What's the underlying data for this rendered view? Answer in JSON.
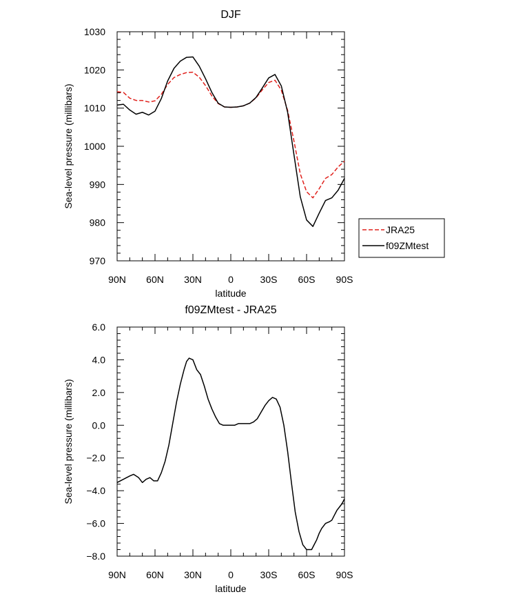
{
  "chart_data": [
    {
      "type": "line",
      "title": "DJF",
      "xlabel": "latitude",
      "ylabel": "Sea-level pressure (millibars)",
      "xlim": [
        90,
        -90
      ],
      "ylim": [
        970,
        1030
      ],
      "yticks": [
        970,
        980,
        990,
        1000,
        1010,
        1020,
        1030
      ],
      "xticks": [
        {
          "value": 90,
          "label": "90N"
        },
        {
          "value": 60,
          "label": "60N"
        },
        {
          "value": 30,
          "label": "30N"
        },
        {
          "value": 0,
          "label": "0"
        },
        {
          "value": -30,
          "label": "30S"
        },
        {
          "value": -60,
          "label": "60S"
        },
        {
          "value": -90,
          "label": "90S"
        }
      ],
      "legend_position": "right",
      "series": [
        {
          "name": "JRA25",
          "color": "#e0201b",
          "dash": "dashed",
          "x": [
            90,
            85,
            80,
            75,
            70,
            65,
            60,
            55,
            50,
            45,
            40,
            35,
            30,
            25,
            20,
            15,
            10,
            5,
            0,
            -5,
            -10,
            -15,
            -20,
            -25,
            -30,
            -35,
            -40,
            -45,
            -50,
            -55,
            -60,
            -65,
            -70,
            -75,
            -80,
            -85,
            -90
          ],
          "y": [
            1014.3,
            1014.1,
            1012.6,
            1012.0,
            1012.0,
            1011.6,
            1011.9,
            1013.6,
            1016.2,
            1018.0,
            1018.8,
            1019.3,
            1019.4,
            1018.1,
            1015.9,
            1013.2,
            1011.2,
            1010.3,
            1010.2,
            1010.3,
            1010.6,
            1011.3,
            1012.7,
            1014.8,
            1016.7,
            1017.3,
            1014.7,
            1009.4,
            1001.4,
            992.8,
            988.1,
            986.5,
            988.9,
            991.6,
            992.6,
            994.6,
            996.1
          ]
        },
        {
          "name": "f09ZMtest",
          "color": "#000000",
          "dash": "solid",
          "x": [
            90,
            85,
            80,
            75,
            70,
            65,
            60,
            55,
            50,
            45,
            40,
            35,
            30,
            25,
            20,
            15,
            10,
            5,
            0,
            -5,
            -10,
            -15,
            -20,
            -25,
            -30,
            -35,
            -40,
            -45,
            -50,
            -55,
            -60,
            -65,
            -70,
            -75,
            -80,
            -85,
            -90
          ],
          "y": [
            1010.8,
            1011.0,
            1009.5,
            1008.4,
            1008.9,
            1008.2,
            1009.2,
            1012.5,
            1017.1,
            1020.4,
            1022.3,
            1023.3,
            1023.4,
            1021.0,
            1017.7,
            1014.1,
            1011.3,
            1010.3,
            1010.2,
            1010.3,
            1010.6,
            1011.3,
            1012.8,
            1015.3,
            1017.9,
            1018.8,
            1015.8,
            1008.9,
            997.8,
            986.8,
            980.7,
            979.0,
            982.5,
            985.8,
            986.5,
            988.5,
            991.6
          ]
        }
      ]
    },
    {
      "type": "line",
      "title": "f09ZMtest - JRA25",
      "xlabel": "latitude",
      "ylabel": "Sea-level pressure (millibars)",
      "xlim": [
        90,
        -90
      ],
      "ylim": [
        -8,
        6
      ],
      "yticks": [
        -8,
        -6,
        -4,
        -2,
        0,
        2,
        4,
        6
      ],
      "ytick_labels": [
        "−8.0",
        "−6.0",
        "−4.0",
        "−2.0",
        "0.0",
        "2.0",
        "4.0",
        "6.0"
      ],
      "xticks": [
        {
          "value": 90,
          "label": "90N"
        },
        {
          "value": 60,
          "label": "60N"
        },
        {
          "value": 30,
          "label": "30N"
        },
        {
          "value": 0,
          "label": "0"
        },
        {
          "value": -30,
          "label": "30S"
        },
        {
          "value": -60,
          "label": "60S"
        },
        {
          "value": -90,
          "label": "90S"
        }
      ],
      "series": [
        {
          "color": "#000000",
          "dash": "solid",
          "x": [
            90,
            85,
            80,
            77,
            73,
            70,
            67,
            64,
            61,
            58,
            55,
            52,
            49,
            46,
            43,
            40,
            37,
            35,
            33,
            30,
            27,
            24,
            21,
            18,
            15,
            12,
            9,
            6,
            3,
            0,
            -3,
            -6,
            -9,
            -12,
            -15,
            -18,
            -21,
            -24,
            -27,
            -30,
            -33,
            -36,
            -39,
            -42,
            -45,
            -48,
            -51,
            -54,
            -57,
            -60,
            -62,
            -64,
            -66,
            -68,
            -70,
            -72,
            -75,
            -78,
            -80,
            -82,
            -84,
            -86,
            -88,
            -90
          ],
          "y": [
            -3.5,
            -3.3,
            -3.1,
            -3.0,
            -3.2,
            -3.5,
            -3.3,
            -3.2,
            -3.4,
            -3.4,
            -2.9,
            -2.2,
            -1.2,
            0.1,
            1.4,
            2.5,
            3.4,
            3.9,
            4.1,
            4.0,
            3.4,
            3.1,
            2.4,
            1.6,
            1.0,
            0.5,
            0.1,
            0.0,
            0.0,
            0.0,
            0.0,
            0.1,
            0.1,
            0.1,
            0.1,
            0.2,
            0.4,
            0.8,
            1.2,
            1.5,
            1.7,
            1.6,
            1.1,
            0.0,
            -1.6,
            -3.5,
            -5.3,
            -6.5,
            -7.3,
            -7.6,
            -7.6,
            -7.6,
            -7.3,
            -7.0,
            -6.6,
            -6.3,
            -6.0,
            -5.9,
            -5.8,
            -5.5,
            -5.2,
            -5.0,
            -4.8,
            -4.5
          ]
        }
      ]
    }
  ]
}
